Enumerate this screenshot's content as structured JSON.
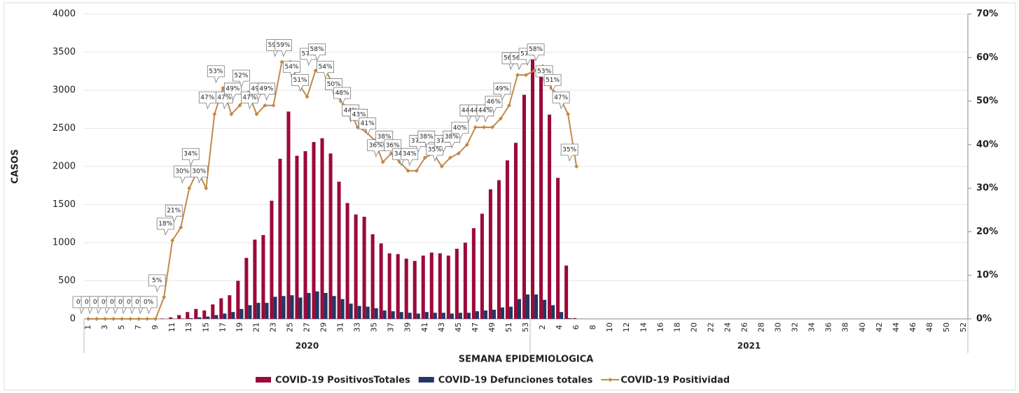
{
  "chart_data": {
    "type": "bar_line",
    "ylabel": "CASOS",
    "xlabel": "SEMANA EPIDEMIOLOGICA",
    "groups": [
      {
        "name": "2020",
        "categories": [
          "1",
          null,
          "3",
          null,
          "5",
          null,
          "7",
          null,
          "9",
          null,
          "11",
          null,
          "13",
          null,
          "15",
          null,
          "17",
          null,
          "19",
          null,
          "21",
          null,
          "23",
          null,
          "25",
          null,
          "27",
          null,
          "29",
          null,
          "31",
          null,
          "33",
          null,
          "35",
          null,
          "37",
          null,
          "39",
          null,
          "41",
          null,
          "43",
          null,
          "45",
          null,
          "47",
          null,
          "49",
          null,
          "51",
          null,
          "53"
        ]
      },
      {
        "name": "2021",
        "categories": [
          null,
          "2",
          null,
          "4",
          null,
          "6",
          null,
          "8",
          null,
          "10",
          null,
          "12",
          null,
          "14",
          null,
          "16",
          null,
          "18",
          null,
          "20",
          null,
          "22",
          null,
          "24",
          null,
          "26",
          null,
          "28",
          null,
          "30",
          null,
          "32",
          null,
          "34",
          null,
          "36",
          null,
          "38",
          null,
          "40",
          null,
          "42",
          null,
          "44",
          null,
          "46",
          null,
          "48",
          null,
          "50",
          null,
          "52"
        ]
      }
    ],
    "ylim": [
      0,
      4000
    ],
    "yticks": [
      0,
      500,
      1000,
      1500,
      2000,
      2500,
      3000,
      3500,
      4000
    ],
    "y2lim": [
      0,
      70
    ],
    "y2ticks": [
      {
        "value": 0,
        "label": "0%"
      },
      {
        "value": 10,
        "label": "10%"
      },
      {
        "value": 20,
        "label": "20%"
      },
      {
        "value": 30,
        "label": "30%"
      },
      {
        "value": 40,
        "label": "40%"
      },
      {
        "value": 50,
        "label": "50%"
      },
      {
        "value": 60,
        "label": "60%"
      },
      {
        "value": 70,
        "label": "70%"
      }
    ],
    "grid": true,
    "legend": "bottom",
    "series": [
      {
        "name": "COVID-19 PositivosTotales",
        "type": "bar",
        "color": "#9b0a3a",
        "values": [
          0,
          0,
          0,
          0,
          0,
          0,
          0,
          0,
          0,
          5,
          20,
          50,
          90,
          130,
          110,
          190,
          270,
          310,
          500,
          800,
          1040,
          1100,
          1550,
          2100,
          2720,
          2140,
          2200,
          2320,
          2370,
          2170,
          1800,
          1520,
          1370,
          1340,
          1110,
          990,
          860,
          850,
          790,
          760,
          830,
          870,
          860,
          830,
          920,
          1000,
          1190,
          1380,
          1700,
          1820,
          2080,
          2310,
          2940,
          3500,
          3250,
          2680,
          1850,
          700,
          10,
          null,
          null,
          null,
          null,
          null,
          null,
          null,
          null,
          null,
          null,
          null,
          null,
          null,
          null,
          null,
          null,
          null,
          null,
          null,
          null,
          null,
          null,
          null,
          null,
          null,
          null,
          null,
          null,
          null,
          null,
          null,
          null,
          null,
          null,
          null,
          null,
          null,
          null,
          null,
          null,
          null,
          null,
          null,
          null,
          null,
          null
        ]
      },
      {
        "name": "COVID-19 Defunciones totales",
        "type": "bar",
        "color": "#1f3864",
        "values": [
          0,
          0,
          0,
          0,
          0,
          0,
          0,
          0,
          0,
          0,
          2,
          5,
          10,
          20,
          30,
          50,
          70,
          90,
          130,
          180,
          210,
          210,
          290,
          300,
          310,
          280,
          340,
          360,
          340,
          300,
          260,
          200,
          170,
          160,
          140,
          110,
          100,
          90,
          80,
          70,
          90,
          80,
          80,
          70,
          80,
          80,
          100,
          110,
          120,
          150,
          160,
          260,
          320,
          320,
          250,
          180,
          90,
          10,
          0,
          null,
          null,
          null,
          null,
          null,
          null,
          null,
          null,
          null,
          null,
          null,
          null,
          null,
          null,
          null,
          null,
          null,
          null,
          null,
          null,
          null,
          null,
          null,
          null,
          null,
          null,
          null,
          null,
          null,
          null,
          null,
          null,
          null,
          null,
          null,
          null,
          null,
          null,
          null,
          null,
          null,
          null,
          null,
          null,
          null,
          null
        ]
      },
      {
        "name": "COVID-19 Positividad",
        "type": "line",
        "axis": "y2",
        "color": "#c08a4a",
        "values": [
          0,
          0,
          0,
          0,
          0,
          0,
          0,
          0,
          0,
          5,
          18,
          21,
          30,
          34,
          30,
          47,
          53,
          47,
          49,
          52,
          47,
          49,
          49,
          59,
          59,
          54,
          51,
          57,
          58,
          54,
          50,
          48,
          44,
          43,
          41,
          36,
          38,
          36,
          34,
          34,
          37,
          38,
          35,
          37,
          38,
          40,
          44,
          44,
          44,
          46,
          49,
          56,
          56,
          57,
          58,
          53,
          51,
          47,
          35,
          null,
          null,
          null,
          null,
          null,
          null,
          null,
          null,
          null,
          null,
          null,
          null,
          null,
          null,
          null,
          null,
          null,
          null,
          null,
          null,
          null,
          null,
          null,
          null,
          null,
          null,
          null,
          null,
          null,
          null,
          null,
          null,
          null,
          null,
          null,
          null,
          null,
          null,
          null,
          null,
          null,
          null,
          null,
          null,
          null,
          null
        ],
        "value_labels": [
          "0%",
          "0%",
          "0%",
          "0%",
          "0%",
          "0%",
          "0%",
          "0%",
          "0%",
          "5%",
          "18%",
          "21%",
          "30%",
          "34%",
          "30%",
          "47%",
          "53%",
          "47%",
          "49%",
          "52%",
          "47%",
          "49%",
          "49%",
          "59%",
          "59%",
          "54%",
          "51%",
          "57%",
          "58%",
          "54%",
          "50%",
          "48%",
          "44%",
          "43%",
          "41%",
          "36%",
          "38%",
          "36%",
          "34%",
          "34%",
          "37%",
          "38%",
          "35%",
          "37%",
          "38%",
          "40%",
          "44%",
          "44%",
          "44%",
          "46%",
          "49%",
          "56%",
          "56%",
          "57%",
          "58%",
          "53%",
          "51%",
          "47%",
          "35%",
          null,
          null,
          null,
          null,
          null,
          null,
          null,
          null,
          null,
          null,
          null,
          null,
          null,
          null,
          null,
          null,
          null,
          null,
          null,
          null,
          null,
          null,
          null,
          null,
          null,
          null,
          null,
          null,
          null,
          null,
          null,
          null,
          null,
          null,
          null,
          null,
          null,
          null,
          null,
          null,
          null,
          null,
          null,
          null,
          null,
          null
        ]
      }
    ]
  }
}
